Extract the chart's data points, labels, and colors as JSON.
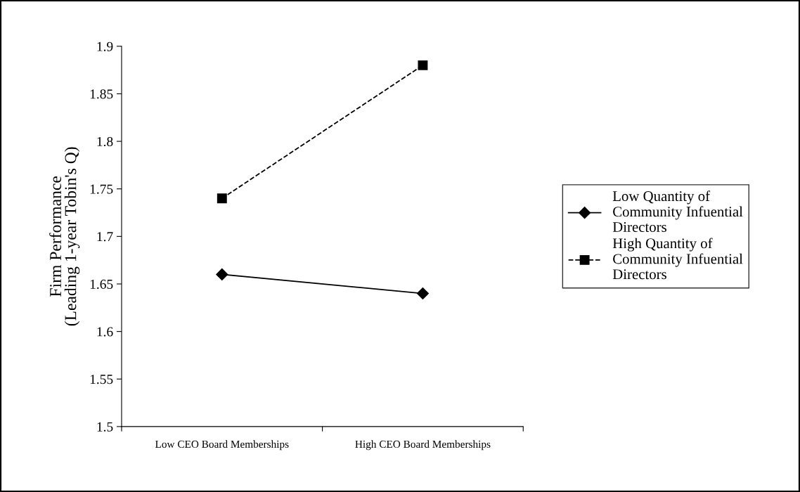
{
  "chart_data": {
    "type": "line",
    "categories": [
      "Low CEO Board Memberships",
      "High CEO Board Memberships"
    ],
    "ylabel": "Firm Performance\n(Leading 1-year Tobin's Q)",
    "series": [
      {
        "name": "Low Quantity of Community Infuential Directors",
        "color": "#000000",
        "values": [
          1.66,
          1.64
        ],
        "marker": "diamond",
        "line_style": "solid"
      },
      {
        "name": "High Quantity of Community Infuential Directors",
        "color": "#000000",
        "values": [
          1.74,
          1.88
        ],
        "marker": "square",
        "line_style": "dashed"
      }
    ],
    "ylim": [
      1.5,
      1.9
    ],
    "yticks": [
      1.5,
      1.55,
      1.6,
      1.65,
      1.7,
      1.75,
      1.8,
      1.85,
      1.9
    ],
    "grid": false,
    "legend": "right"
  }
}
